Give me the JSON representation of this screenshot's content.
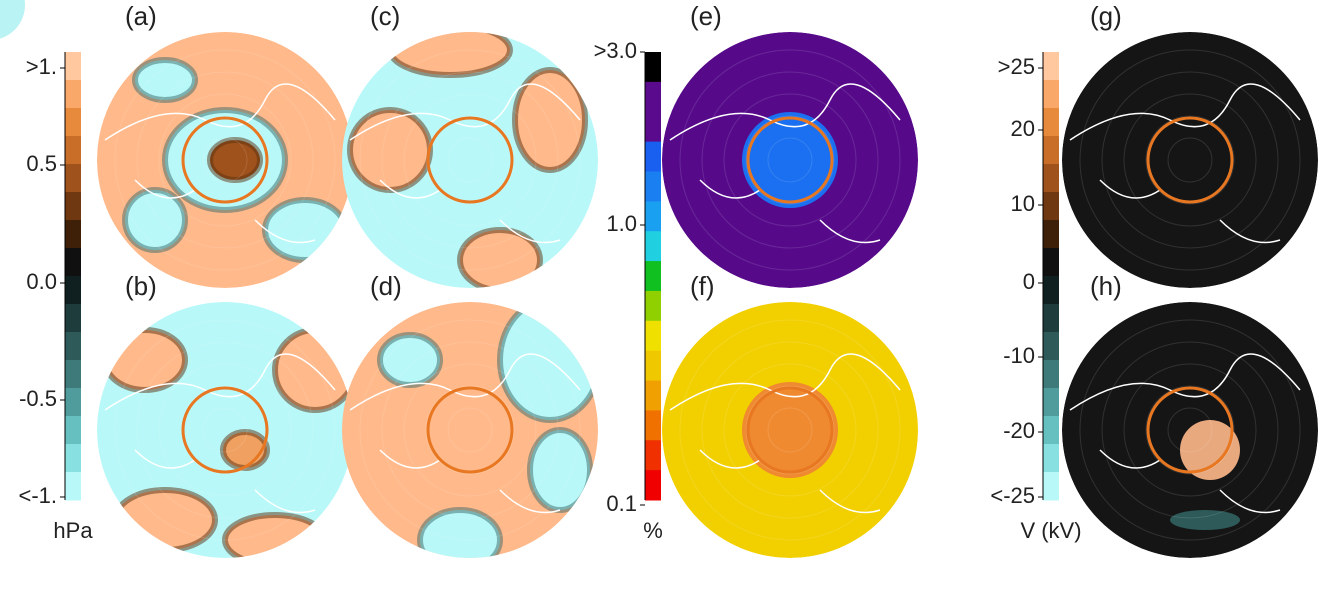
{
  "panels": [
    {
      "label": "(a)"
    },
    {
      "label": "(b)"
    },
    {
      "label": "(c)"
    },
    {
      "label": "(d)"
    },
    {
      "label": "(e)"
    },
    {
      "label": "(f)"
    },
    {
      "label": "(g)"
    },
    {
      "label": "(h)"
    }
  ],
  "colorbars": [
    {
      "unit": "hPa",
      "ticks": [
        ">1.",
        "0.5",
        "0.0",
        "-0.5",
        "<-1."
      ],
      "colors": [
        "#ffc89e",
        "#f9a86a",
        "#e88a3c",
        "#c86e28",
        "#a0521c",
        "#703810",
        "#3e2008",
        "#101010",
        "#102020",
        "#1e3c3c",
        "#2e5a5a",
        "#3e7a7a",
        "#509c9c",
        "#66c0c0",
        "#88e0e0",
        "#b8f8f8"
      ]
    },
    {
      "unit": "%",
      "ticks": [
        ">3.0",
        "1.0",
        "0.1"
      ],
      "colors": [
        "#000000",
        "#5a0a8c",
        "#5a0a8c",
        "#1a60f0",
        "#1a7ff0",
        "#1aa0f0",
        "#20d0e0",
        "#10c020",
        "#90d000",
        "#f0e000",
        "#f0c800",
        "#f0a000",
        "#f07000",
        "#f03000",
        "#f00000"
      ]
    },
    {
      "unit": "V (kV)",
      "ticks": [
        ">25",
        "20",
        "10",
        "0",
        "-10",
        "-20",
        "<-25"
      ],
      "colors": [
        "#ffc89e",
        "#f9a86a",
        "#e88a3c",
        "#c86e28",
        "#a0521c",
        "#703810",
        "#3e2008",
        "#101010",
        "#102020",
        "#1e3c3c",
        "#2e5a5a",
        "#3e7a7a",
        "#509c9c",
        "#66c0c0",
        "#88e0e0",
        "#b8f8f8"
      ]
    }
  ]
}
